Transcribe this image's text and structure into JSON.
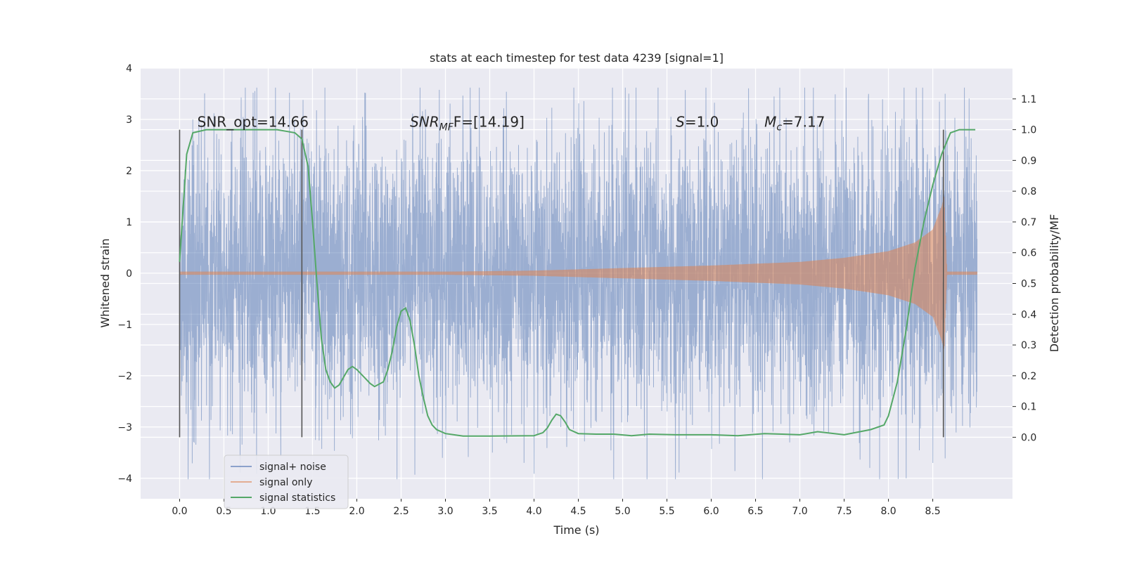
{
  "chart_data": {
    "type": "line",
    "title": "stats at each timestep for test data 4239 [signal=1]",
    "xlabel": "Time (s)",
    "ylabel_left": "Whitened strain",
    "ylabel_right": "Detection probability/MF",
    "xlim": [
      -0.44,
      9.4
    ],
    "ylim_left": [
      -4.4,
      4.0
    ],
    "ylim_right": [
      -0.2,
      1.2
    ],
    "x_ticks": [
      "0.0",
      "0.5",
      "1.0",
      "1.5",
      "2.0",
      "2.5",
      "3.0",
      "3.5",
      "4.0",
      "4.5",
      "5.0",
      "5.5",
      "6.0",
      "6.5",
      "7.0",
      "7.5",
      "8.0",
      "8.5"
    ],
    "y_ticks_left": [
      "−4",
      "−3",
      "−2",
      "−1",
      "0",
      "1",
      "2",
      "3",
      "4"
    ],
    "y_ticks_right": [
      "0.0",
      "0.1",
      "0.2",
      "0.3",
      "0.4",
      "0.5",
      "0.6",
      "0.7",
      "0.8",
      "0.9",
      "1.0",
      "1.1"
    ],
    "grid": true,
    "legend_position": "lower-left",
    "annotations": [
      {
        "x": 0.2,
        "y": 2.95,
        "text": "SNR_opt=14.66"
      },
      {
        "x": 2.6,
        "y": 2.95,
        "text": "SNRMF=[14.19]",
        "parts": [
          "SNR",
          "MF",
          "F=[14.19]"
        ]
      },
      {
        "x": 5.6,
        "y": 2.95,
        "text": "S=1.0",
        "parts": [
          "S",
          "=1.0"
        ]
      },
      {
        "x": 6.6,
        "y": 2.95,
        "text": "Mc=7.17",
        "parts": [
          "M",
          "c",
          "=7.17"
        ]
      }
    ],
    "vlines": [
      {
        "x": 0.0,
        "y0": -3.2,
        "y1": 2.8
      },
      {
        "x": 1.38,
        "y0": -3.2,
        "y1": 2.8
      },
      {
        "x": 8.62,
        "y0": -3.2,
        "y1": 2.8
      }
    ],
    "series": [
      {
        "name": "signal+ noise",
        "color": "#4c72b0",
        "kind": "noise",
        "x_range": [
          0.0,
          9.0
        ],
        "typical_amplitude": 2.0,
        "max": 3.62,
        "min": -4.02,
        "extremes": [
          {
            "x": 1.64,
            "y": 3.62
          },
          {
            "x": 0.83,
            "y": 3.52
          },
          {
            "x": 1.24,
            "y": 3.52
          },
          {
            "x": 8.64,
            "y": 3.5
          },
          {
            "x": 3.53,
            "y": -3.5
          },
          {
            "x": 7.9,
            "y": -4.02
          },
          {
            "x": 1.95,
            "y": -3.22
          },
          {
            "x": 4.57,
            "y": -3.28
          }
        ]
      },
      {
        "name": "signal only",
        "color": "#dd8452",
        "kind": "chirp",
        "envelope": [
          {
            "x": 0.0,
            "y": 0.03
          },
          {
            "x": 3.0,
            "y": 0.03
          },
          {
            "x": 4.0,
            "y": 0.05
          },
          {
            "x": 5.0,
            "y": 0.1
          },
          {
            "x": 6.0,
            "y": 0.15
          },
          {
            "x": 7.0,
            "y": 0.22
          },
          {
            "x": 7.5,
            "y": 0.3
          },
          {
            "x": 8.0,
            "y": 0.43
          },
          {
            "x": 8.3,
            "y": 0.6
          },
          {
            "x": 8.5,
            "y": 0.85
          },
          {
            "x": 8.6,
            "y": 1.3
          },
          {
            "x": 8.63,
            "y": 1.5
          },
          {
            "x": 8.66,
            "y": 0.03
          },
          {
            "x": 9.0,
            "y": 0.03
          }
        ]
      },
      {
        "name": "signal statistics",
        "color": "#55a868",
        "kind": "line",
        "axis": "right",
        "x": [
          0.0,
          0.08,
          0.15,
          0.3,
          0.5,
          0.8,
          1.1,
          1.2,
          1.3,
          1.38,
          1.45,
          1.5,
          1.55,
          1.6,
          1.65,
          1.7,
          1.75,
          1.8,
          1.9,
          1.95,
          2.0,
          2.1,
          2.15,
          2.2,
          2.3,
          2.35,
          2.4,
          2.45,
          2.5,
          2.55,
          2.6,
          2.65,
          2.7,
          2.75,
          2.8,
          2.85,
          2.9,
          3.0,
          3.2,
          3.5,
          4.0,
          4.1,
          4.15,
          4.2,
          4.25,
          4.3,
          4.35,
          4.4,
          4.5,
          4.7,
          4.9,
          5.1,
          5.3,
          5.6,
          6.0,
          6.3,
          6.6,
          6.8,
          7.0,
          7.2,
          7.5,
          7.8,
          7.95,
          8.0,
          8.1,
          8.2,
          8.3,
          8.4,
          8.5,
          8.6,
          8.7,
          8.8,
          8.9,
          8.98
        ],
        "y": [
          0.57,
          0.92,
          0.99,
          1.0,
          1.0,
          1.0,
          1.0,
          0.995,
          0.99,
          0.97,
          0.88,
          0.7,
          0.5,
          0.32,
          0.22,
          0.18,
          0.16,
          0.17,
          0.22,
          0.23,
          0.22,
          0.19,
          0.175,
          0.165,
          0.18,
          0.22,
          0.28,
          0.36,
          0.41,
          0.42,
          0.38,
          0.3,
          0.2,
          0.13,
          0.07,
          0.04,
          0.025,
          0.012,
          0.004,
          0.004,
          0.005,
          0.015,
          0.03,
          0.055,
          0.075,
          0.07,
          0.05,
          0.025,
          0.012,
          0.01,
          0.01,
          0.005,
          0.01,
          0.008,
          0.008,
          0.005,
          0.012,
          0.01,
          0.008,
          0.018,
          0.008,
          0.025,
          0.04,
          0.07,
          0.18,
          0.35,
          0.55,
          0.7,
          0.82,
          0.92,
          0.99,
          1.0,
          1.0,
          1.0
        ]
      }
    ]
  }
}
